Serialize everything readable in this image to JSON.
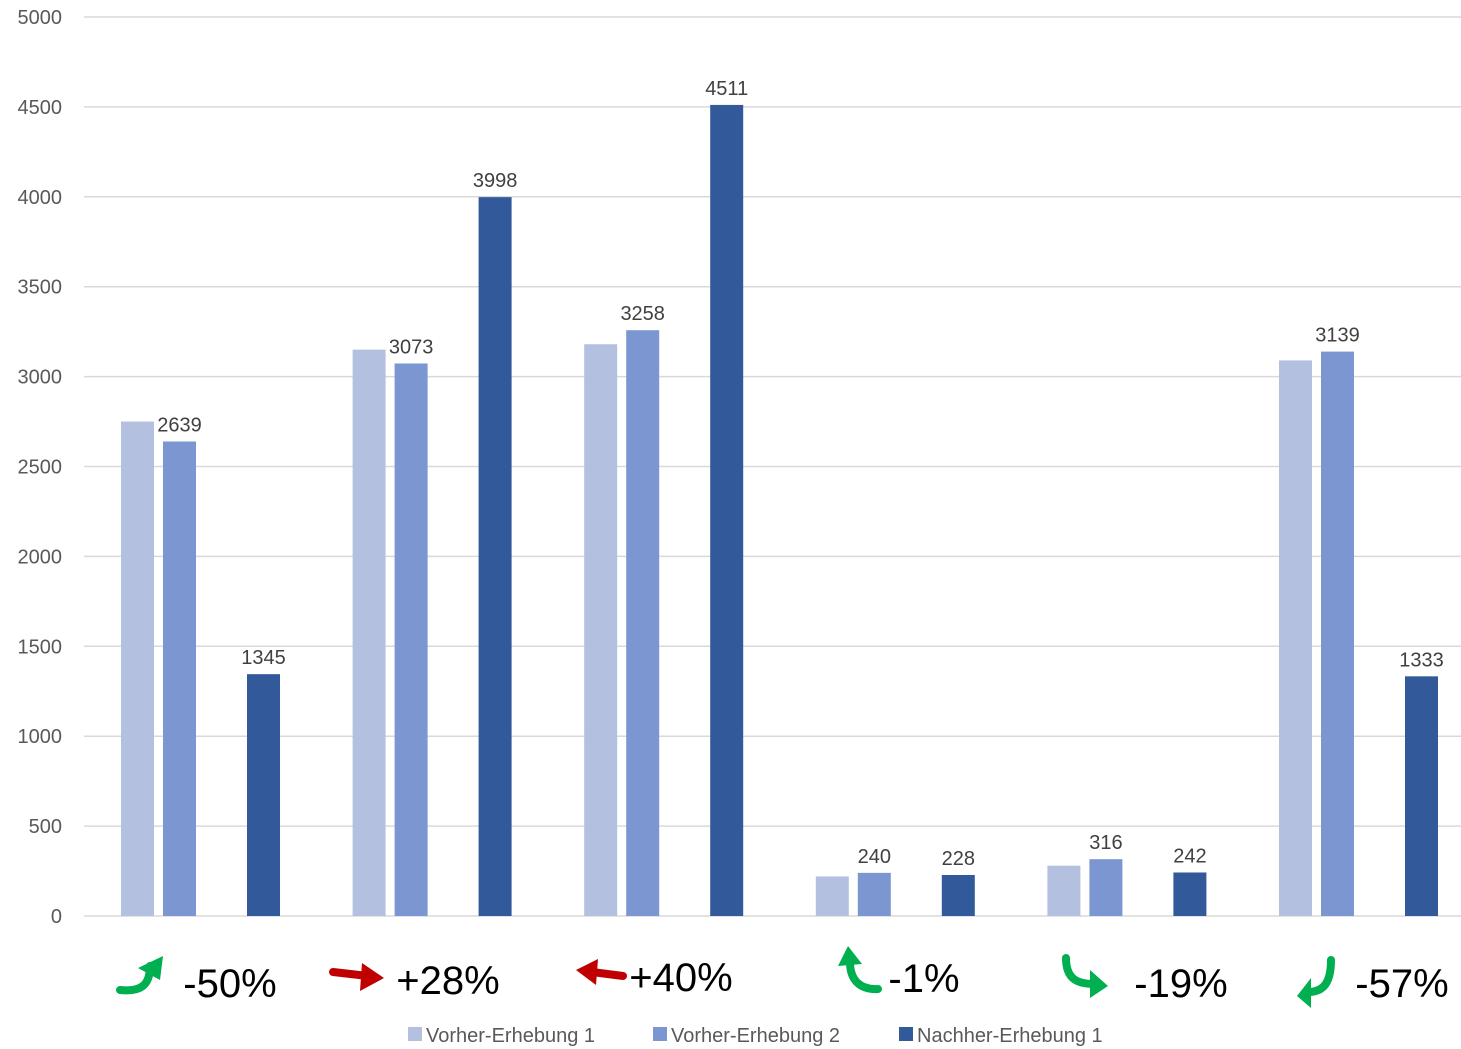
{
  "chart_data": {
    "type": "bar",
    "categories": [
      "",
      "",
      "",
      "",
      "",
      ""
    ],
    "series": [
      {
        "name": "Vorher-Erhebung 1",
        "color": "#b4c0e0",
        "values": [
          2750,
          3150,
          3180,
          220,
          280,
          3090
        ]
      },
      {
        "name": "Vorher-Erhebung 2",
        "color": "#7b96d1",
        "values": [
          2639,
          3073,
          3258,
          240,
          316,
          3139
        ]
      },
      {
        "name": "Nachher-Erhebung 1",
        "color": "#325a9b",
        "values": [
          1345,
          3998,
          4511,
          228,
          242,
          1333
        ]
      }
    ],
    "data_labels": [
      [
        null,
        null,
        null,
        null,
        null,
        null
      ],
      [
        "2639",
        "3073",
        "3258",
        "240",
        "316",
        "3139"
      ],
      [
        "1345",
        "3998",
        "4511",
        "228",
        "242",
        "1333"
      ]
    ],
    "ylim": [
      0,
      5000
    ],
    "yticks": [
      "0",
      "500",
      "1000",
      "1500",
      "2000",
      "2500",
      "3000",
      "3500",
      "4000",
      "4500",
      "5000"
    ],
    "grid": true,
    "legend_position": "bottom",
    "changes": [
      {
        "text": "-50%",
        "icon": "curved-arrow-up-right-icon",
        "color": "#00b050"
      },
      {
        "text": "+28%",
        "icon": "arrow-right-icon",
        "color": "#c00000"
      },
      {
        "text": "+40%",
        "icon": "arrow-left-icon",
        "color": "#c00000"
      },
      {
        "text": "-1%",
        "icon": "curved-arrow-up-left-icon",
        "color": "#00b050"
      },
      {
        "text": "-19%",
        "icon": "curved-arrow-down-right-icon",
        "color": "#00b050"
      },
      {
        "text": "-57%",
        "icon": "curved-arrow-down-left-icon",
        "color": "#00b050"
      }
    ]
  }
}
